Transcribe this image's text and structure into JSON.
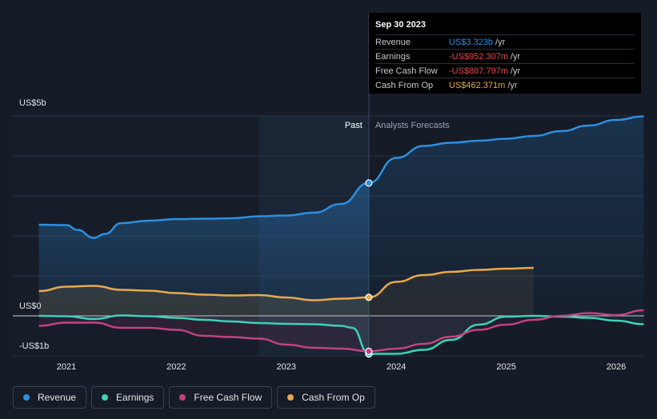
{
  "chart_data": {
    "type": "line",
    "y_axis_labels": [
      "US$5b",
      "US$0",
      "-US$1b"
    ],
    "x_tick_labels": [
      "2021",
      "2022",
      "2023",
      "2024",
      "2025",
      "2026"
    ],
    "ylim": [
      -1,
      5
    ],
    "past_label": "Past",
    "forecast_label": "Analysts Forecasts",
    "series": [
      {
        "name": "Revenue",
        "color": "#2d8fe0",
        "points": [
          [
            2020.75,
            2.28
          ],
          [
            2021.0,
            2.27
          ],
          [
            2021.1,
            2.15
          ],
          [
            2021.25,
            1.95
          ],
          [
            2021.35,
            2.05
          ],
          [
            2021.5,
            2.32
          ],
          [
            2021.75,
            2.38
          ],
          [
            2022.0,
            2.42
          ],
          [
            2022.25,
            2.43
          ],
          [
            2022.5,
            2.44
          ],
          [
            2022.75,
            2.49
          ],
          [
            2023.0,
            2.51
          ],
          [
            2023.25,
            2.58
          ],
          [
            2023.5,
            2.8
          ],
          [
            2023.75,
            3.323
          ],
          [
            2024.0,
            3.95
          ],
          [
            2024.25,
            4.25
          ],
          [
            2024.5,
            4.33
          ],
          [
            2024.75,
            4.38
          ],
          [
            2025.0,
            4.43
          ],
          [
            2025.25,
            4.5
          ],
          [
            2025.5,
            4.62
          ],
          [
            2025.75,
            4.76
          ],
          [
            2026.0,
            4.9
          ],
          [
            2026.25,
            4.99
          ]
        ]
      },
      {
        "name": "Earnings",
        "color": "#3ed1bb",
        "points": [
          [
            2020.75,
            0.0
          ],
          [
            2021.0,
            -0.01
          ],
          [
            2021.25,
            -0.08
          ],
          [
            2021.5,
            0.01
          ],
          [
            2021.75,
            -0.01
          ],
          [
            2022.0,
            -0.05
          ],
          [
            2022.25,
            -0.1
          ],
          [
            2022.5,
            -0.14
          ],
          [
            2022.75,
            -0.18
          ],
          [
            2023.0,
            -0.2
          ],
          [
            2023.25,
            -0.21
          ],
          [
            2023.5,
            -0.25
          ],
          [
            2023.6,
            -0.3
          ],
          [
            2023.75,
            -0.952
          ],
          [
            2024.0,
            -0.95
          ],
          [
            2024.25,
            -0.85
          ],
          [
            2024.5,
            -0.6
          ],
          [
            2024.75,
            -0.22
          ],
          [
            2025.0,
            -0.02
          ],
          [
            2025.25,
            0.0
          ],
          [
            2025.5,
            -0.02
          ],
          [
            2025.75,
            -0.05
          ],
          [
            2026.0,
            -0.12
          ],
          [
            2026.25,
            -0.21
          ]
        ]
      },
      {
        "name": "Free Cash Flow",
        "color": "#c2437f",
        "points": [
          [
            2020.75,
            -0.25
          ],
          [
            2021.0,
            -0.17
          ],
          [
            2021.25,
            -0.17
          ],
          [
            2021.5,
            -0.3
          ],
          [
            2021.75,
            -0.3
          ],
          [
            2022.0,
            -0.35
          ],
          [
            2022.25,
            -0.5
          ],
          [
            2022.5,
            -0.53
          ],
          [
            2022.75,
            -0.57
          ],
          [
            2023.0,
            -0.72
          ],
          [
            2023.25,
            -0.8
          ],
          [
            2023.5,
            -0.82
          ],
          [
            2023.75,
            -0.888
          ],
          [
            2024.0,
            -0.82
          ],
          [
            2024.25,
            -0.7
          ],
          [
            2024.5,
            -0.52
          ],
          [
            2024.75,
            -0.35
          ],
          [
            2025.0,
            -0.22
          ],
          [
            2025.25,
            -0.1
          ],
          [
            2025.5,
            0.0
          ],
          [
            2025.75,
            0.07
          ],
          [
            2026.0,
            0.02
          ],
          [
            2026.25,
            0.14
          ]
        ]
      },
      {
        "name": "Cash From Op",
        "color": "#e8a94e",
        "points": [
          [
            2020.75,
            0.62
          ],
          [
            2021.0,
            0.73
          ],
          [
            2021.25,
            0.75
          ],
          [
            2021.5,
            0.65
          ],
          [
            2021.75,
            0.63
          ],
          [
            2022.0,
            0.57
          ],
          [
            2022.25,
            0.53
          ],
          [
            2022.5,
            0.51
          ],
          [
            2022.75,
            0.52
          ],
          [
            2023.0,
            0.46
          ],
          [
            2023.25,
            0.39
          ],
          [
            2023.5,
            0.43
          ],
          [
            2023.75,
            0.462
          ],
          [
            2024.0,
            0.85
          ],
          [
            2024.25,
            1.02
          ],
          [
            2024.5,
            1.1
          ],
          [
            2024.75,
            1.15
          ],
          [
            2025.0,
            1.18
          ],
          [
            2025.25,
            1.2
          ]
        ]
      }
    ]
  },
  "tooltip": {
    "date": "Sep 30 2023",
    "rows": [
      {
        "label": "Revenue",
        "value": "US$3.323b",
        "unit": "/yr",
        "color": "#2d8fe0"
      },
      {
        "label": "Earnings",
        "value": "-US$952.307m",
        "unit": "/yr",
        "color": "#e04848"
      },
      {
        "label": "Free Cash Flow",
        "value": "-US$887.797m",
        "unit": "/yr",
        "color": "#e04848"
      },
      {
        "label": "Cash From Op",
        "value": "US$462.371m",
        "unit": "/yr",
        "color": "#e8a94e"
      }
    ]
  },
  "legend": [
    {
      "label": "Revenue",
      "color": "#2d8fe0"
    },
    {
      "label": "Earnings",
      "color": "#3ed1bb"
    },
    {
      "label": "Free Cash Flow",
      "color": "#c2437f"
    },
    {
      "label": "Cash From Op",
      "color": "#e8a94e"
    }
  ]
}
